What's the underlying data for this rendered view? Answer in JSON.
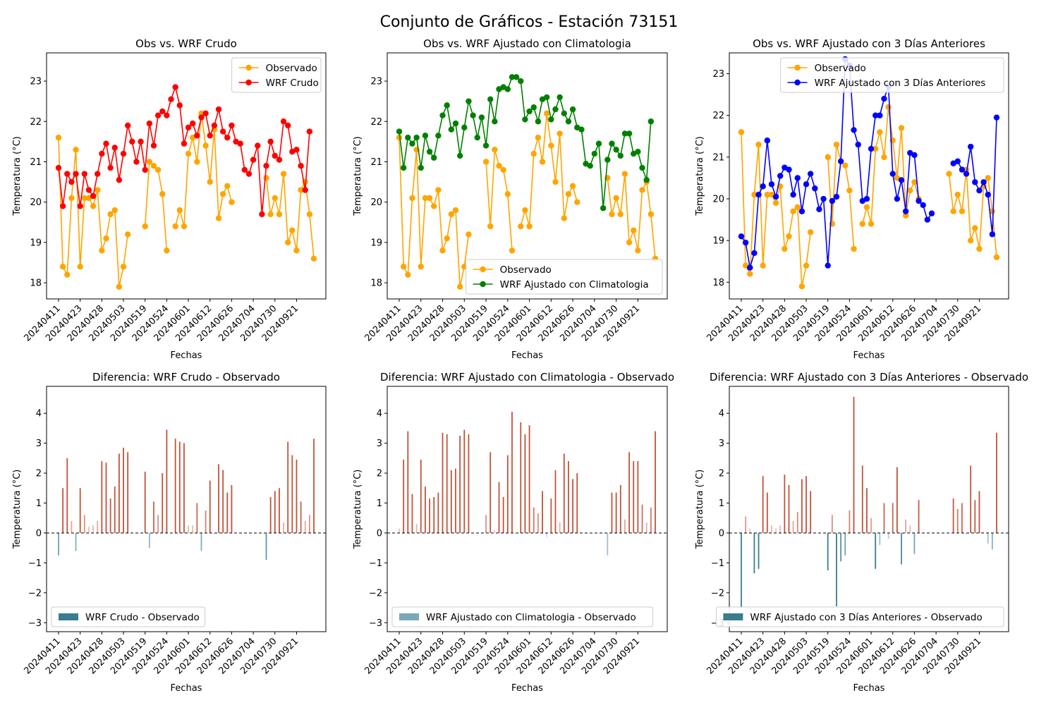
{
  "suptitle": "Conjunto de Gráficos - Estación 73151",
  "colors": {
    "observed": "#FFA500",
    "raw": "#FF0000",
    "clim": "#008000",
    "prev3": "#0000FF",
    "diff_negative": "#3a7d8f",
    "diff_positive": "#c0533a"
  },
  "chart_data": [
    {
      "type": "line",
      "title": "Obs vs. WRF Crudo",
      "xlabel": "Fechas",
      "ylabel": "Temperatura (°C)",
      "ylim": [
        17.6,
        23.7
      ],
      "yticks": [
        18,
        19,
        20,
        21,
        22,
        23
      ],
      "xticks": [
        "20240411",
        "20240423",
        "20240428",
        "20240503",
        "20240519",
        "20240524",
        "20240601",
        "20240612",
        "20240626",
        "20240704",
        "20240730",
        "20240921"
      ],
      "legend_position": "upper right",
      "series": [
        {
          "name": "Observado",
          "color": "#FFA500",
          "values": [
            21.6,
            18.4,
            18.2,
            20.1,
            21.3,
            18.4,
            20.1,
            20.1,
            19.9,
            20.3,
            18.8,
            19.1,
            19.7,
            19.8,
            17.9,
            18.4,
            19.2,
            null,
            null,
            null,
            19.4,
            21.0,
            20.9,
            20.8,
            20.2,
            18.8,
            null,
            19.4,
            19.8,
            19.4,
            21.2,
            21.6,
            21.0,
            22.2,
            21.4,
            20.5,
            21.8,
            19.6,
            20.2,
            20.4,
            20.0,
            null,
            null,
            null,
            null,
            null,
            null,
            null,
            20.6,
            19.7,
            20.1,
            19.7,
            20.7,
            19.0,
            19.3,
            18.8,
            20.3,
            20.5,
            19.7,
            18.6
          ]
        },
        {
          "name": "WRF Crudo",
          "color": "#FF0000",
          "values": [
            20.85,
            19.9,
            20.7,
            20.5,
            20.7,
            19.9,
            20.7,
            20.3,
            20.15,
            20.7,
            21.2,
            21.45,
            20.85,
            21.35,
            20.55,
            21.2,
            21.9,
            21.5,
            21.0,
            21.5,
            20.8,
            21.95,
            21.4,
            22.15,
            22.25,
            22.15,
            22.55,
            22.85,
            22.4,
            21.45,
            21.85,
            21.95,
            21.65,
            22.1,
            22.2,
            21.65,
            21.9,
            22.3,
            21.75,
            21.6,
            21.9,
            21.5,
            21.45,
            20.8,
            20.7,
            21.05,
            21.4,
            19.7,
            20.9,
            21.5,
            21.15,
            21.05,
            22.0,
            21.9,
            21.25,
            21.3,
            20.9,
            20.3,
            21.75,
            null
          ]
        }
      ]
    },
    {
      "type": "line",
      "title": "Obs vs. WRF Ajustado con Climatologia",
      "xlabel": "Fechas",
      "ylabel": "Temperatura (°C)",
      "ylim": [
        17.6,
        23.7
      ],
      "yticks": [
        18,
        19,
        20,
        21,
        22,
        23
      ],
      "xticks": [
        "20240411",
        "20240423",
        "20240428",
        "20240503",
        "20240519",
        "20240524",
        "20240601",
        "20240612",
        "20240626",
        "20240704",
        "20240730",
        "20240921"
      ],
      "legend_position": "lower right",
      "series": [
        {
          "name": "Observado",
          "color": "#FFA500",
          "values": [
            21.6,
            18.4,
            18.2,
            20.1,
            21.3,
            18.4,
            20.1,
            20.1,
            19.9,
            20.3,
            18.8,
            19.1,
            19.7,
            19.8,
            17.9,
            18.4,
            19.2,
            null,
            null,
            null,
            21.0,
            19.4,
            21.3,
            20.9,
            20.8,
            20.2,
            18.8,
            null,
            19.4,
            19.8,
            19.4,
            21.2,
            21.6,
            21.0,
            22.2,
            21.4,
            20.5,
            21.7,
            19.6,
            20.2,
            20.4,
            20.0,
            null,
            null,
            null,
            null,
            null,
            null,
            20.6,
            19.7,
            20.1,
            19.7,
            20.7,
            19.0,
            19.3,
            18.8,
            20.3,
            20.5,
            19.7,
            18.6
          ]
        },
        {
          "name": "WRF Ajustado con Climatologia",
          "color": "#008000",
          "values": [
            21.75,
            20.85,
            21.6,
            21.45,
            21.6,
            20.85,
            21.65,
            21.25,
            21.1,
            21.65,
            22.15,
            22.4,
            21.8,
            21.95,
            21.15,
            21.85,
            22.5,
            22.15,
            21.6,
            22.1,
            21.4,
            22.55,
            22.0,
            22.8,
            22.85,
            22.8,
            23.1,
            23.1,
            23.0,
            22.05,
            22.25,
            22.35,
            22.0,
            22.55,
            22.6,
            22.05,
            22.3,
            22.6,
            22.2,
            22.0,
            22.3,
            21.85,
            21.8,
            20.95,
            20.9,
            21.2,
            21.45,
            19.85,
            21.05,
            21.45,
            21.3,
            21.15,
            21.7,
            21.7,
            21.2,
            21.25,
            20.85,
            20.55,
            22.0,
            null
          ]
        }
      ]
    },
    {
      "type": "line",
      "title": "Obs vs. WRF Ajustado con 3 Días Anteriores",
      "xlabel": "Fechas",
      "ylabel": "Temperatura (°C)",
      "ylim": [
        17.6,
        23.5
      ],
      "yticks": [
        18,
        19,
        20,
        21,
        22,
        23
      ],
      "xticks": [
        "20240411",
        "20240423",
        "20240428",
        "20240503",
        "20240519",
        "20240524",
        "20240601",
        "20240612",
        "20240626",
        "20240704",
        "20240730",
        "20240921"
      ],
      "legend_position": "upper right",
      "series": [
        {
          "name": "Observado",
          "color": "#FFA500",
          "values": [
            21.6,
            18.4,
            18.2,
            20.1,
            21.3,
            18.4,
            20.1,
            20.1,
            19.9,
            20.3,
            18.8,
            19.1,
            19.7,
            19.8,
            17.9,
            18.4,
            19.2,
            null,
            null,
            null,
            21.0,
            19.4,
            21.3,
            20.9,
            20.8,
            20.2,
            18.8,
            null,
            19.4,
            19.8,
            19.4,
            21.2,
            21.6,
            21.0,
            22.2,
            21.4,
            20.5,
            21.7,
            19.6,
            20.2,
            20.4,
            20.0,
            null,
            null,
            null,
            null,
            null,
            null,
            20.6,
            19.7,
            20.1,
            19.7,
            20.7,
            19.0,
            19.3,
            18.8,
            20.3,
            20.5,
            19.7,
            18.6
          ]
        },
        {
          "name": "WRF Ajustado con 3 Días Anteriores",
          "color": "#0000FF",
          "values": [
            19.1,
            18.95,
            18.35,
            18.7,
            20.1,
            20.3,
            21.4,
            20.35,
            20.05,
            20.55,
            20.75,
            20.7,
            20.1,
            20.5,
            19.7,
            20.35,
            20.6,
            20.25,
            19.75,
            20.0,
            18.4,
            19.95,
            20.05,
            20.9,
            23.35,
            23.2,
            21.65,
            21.3,
            19.95,
            20.0,
            21.2,
            22.0,
            22.0,
            22.4,
            22.7,
            20.6,
            20.0,
            20.45,
            19.7,
            21.1,
            21.05,
            19.95,
            19.85,
            19.5,
            19.65,
            null,
            null,
            null,
            null,
            20.85,
            20.9,
            20.7,
            20.6,
            21.25,
            20.4,
            20.2,
            20.4,
            20.1,
            19.15,
            21.95
          ]
        }
      ]
    },
    {
      "type": "bar",
      "title": "Diferencia: WRF Crudo - Observado",
      "xlabel": "Fechas",
      "ylabel": "Temperatura (°C)",
      "ylim": [
        -3.3,
        4.9
      ],
      "yticks": [
        -3,
        -2,
        -1,
        0,
        1,
        2,
        3,
        4
      ],
      "xticks": [
        "20240411",
        "20240423",
        "20240428",
        "20240503",
        "20240519",
        "20240524",
        "20240601",
        "20240612",
        "20240626",
        "20240704",
        "20240730",
        "20240921"
      ],
      "legend_position": "lower left",
      "series": [
        {
          "name": "WRF Crudo - Observado",
          "color": "#3a7d8f",
          "values": [
            -0.75,
            1.5,
            2.5,
            0.4,
            -0.6,
            1.5,
            0.6,
            0.2,
            0.25,
            0.4,
            2.4,
            2.35,
            1.15,
            1.55,
            2.65,
            2.85,
            2.7,
            null,
            null,
            null,
            2.05,
            -0.5,
            1.05,
            0.6,
            2.0,
            3.45,
            null,
            3.15,
            3.05,
            3.0,
            0.25,
            0.25,
            1.0,
            -0.6,
            0.75,
            1.75,
            -0.05,
            2.3,
            2.1,
            1.35,
            1.6,
            null,
            null,
            null,
            null,
            null,
            null,
            null,
            -0.9,
            1.2,
            1.4,
            1.5,
            0.35,
            3.05,
            2.6,
            2.45,
            1.05,
            0.4,
            0.6,
            3.15
          ]
        }
      ]
    },
    {
      "type": "bar",
      "title": "Diferencia: WRF Ajustado con Climatologia - Observado",
      "xlabel": "Fechas",
      "ylabel": "Temperatura (°C)",
      "ylim": [
        -3.3,
        4.9
      ],
      "yticks": [
        -3,
        -2,
        -1,
        0,
        1,
        2,
        3,
        4
      ],
      "xticks": [
        "20240411",
        "20240423",
        "20240428",
        "20240503",
        "20240519",
        "20240524",
        "20240601",
        "20240612",
        "20240626",
        "20240704",
        "20240730",
        "20240921"
      ],
      "legend_position": "lower left",
      "series": [
        {
          "name": "WRF Ajustado con Climatologia - Observado",
          "color": "#7aa9b8",
          "values": [
            0.15,
            2.45,
            3.4,
            1.3,
            0.3,
            2.45,
            1.55,
            1.15,
            1.2,
            1.35,
            3.35,
            3.3,
            2.1,
            2.15,
            3.25,
            3.45,
            3.3,
            null,
            null,
            null,
            0.6,
            2.7,
            0.1,
            1.7,
            1.2,
            2.6,
            4.05,
            null,
            3.7,
            3.3,
            3.6,
            0.85,
            0.65,
            1.4,
            -0.15,
            1.15,
            2.1,
            0.35,
            2.65,
            2.4,
            1.8,
            2.0,
            null,
            null,
            null,
            null,
            null,
            null,
            -0.75,
            1.35,
            1.35,
            1.6,
            0.45,
            2.7,
            2.4,
            2.4,
            0.95,
            0.35,
            0.85,
            3.4
          ]
        }
      ]
    },
    {
      "type": "bar",
      "title": "Diferencia: WRF Ajustado con 3 Días Anteriores - Observado",
      "xlabel": "Fechas",
      "ylabel": "Temperatura (°C)",
      "ylim": [
        -3.3,
        4.9
      ],
      "yticks": [
        -3,
        -2,
        -1,
        0,
        1,
        2,
        3,
        4
      ],
      "xticks": [
        "20240411",
        "20240423",
        "20240428",
        "20240503",
        "20240519",
        "20240524",
        "20240601",
        "20240612",
        "20240626",
        "20240704",
        "20240730",
        "20240921"
      ],
      "legend_position": "lower right",
      "series": [
        {
          "name": "WRF Ajustado con 3 Días Anteriores - Observado",
          "color": "#3a7d8f",
          "values": [
            -2.5,
            0.55,
            0.15,
            -1.35,
            -1.2,
            1.9,
            1.35,
            0.25,
            0.15,
            0.25,
            1.95,
            1.6,
            0.4,
            0.7,
            1.8,
            1.9,
            1.4,
            null,
            null,
            null,
            -1.25,
            0.6,
            -2.45,
            -0.95,
            -0.75,
            0.75,
            4.55,
            null,
            2.25,
            1.5,
            0.5,
            -1.2,
            -0.4,
            1.0,
            -0.2,
            1.0,
            2.2,
            -1.05,
            0.45,
            0.25,
            -0.7,
            1.1,
            null,
            null,
            null,
            null,
            null,
            null,
            null,
            1.15,
            0.8,
            1.0,
            -0.05,
            2.25,
            1.1,
            1.4,
            0.05,
            -0.35,
            -0.55,
            3.35
          ]
        }
      ]
    }
  ]
}
